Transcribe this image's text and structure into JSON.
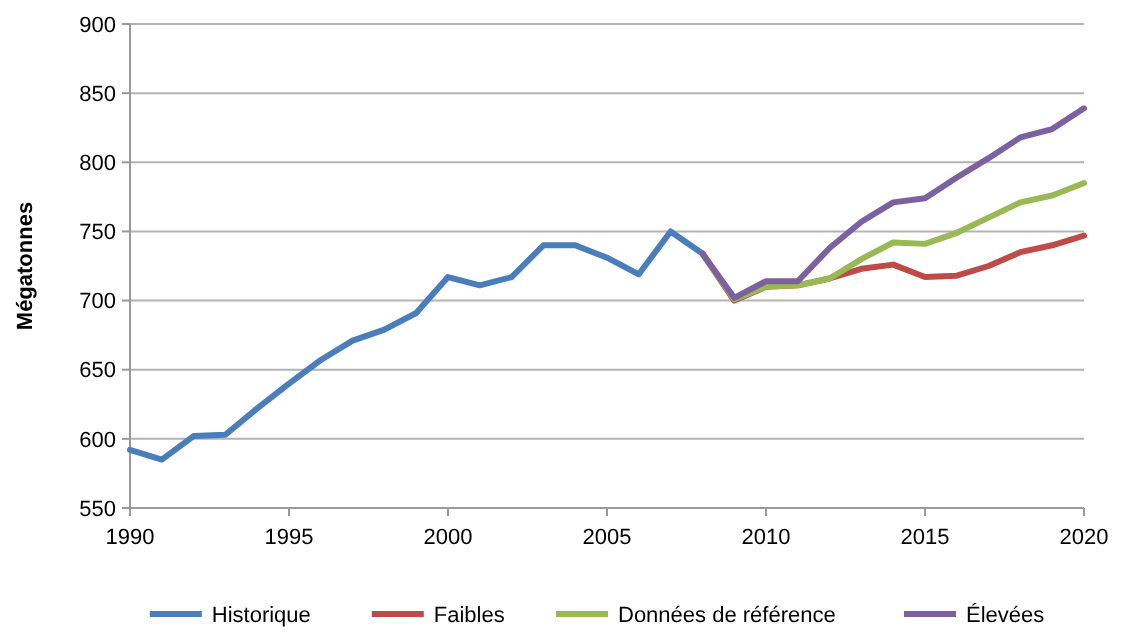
{
  "chart_data": {
    "type": "line",
    "ylabel": "Mégatonnes",
    "xlim": [
      1990,
      2020
    ],
    "xticks": [
      1990,
      1995,
      2000,
      2005,
      2010,
      2015,
      2020
    ],
    "ylim": [
      550,
      900
    ],
    "yticks": [
      550,
      600,
      650,
      700,
      750,
      800,
      850,
      900
    ],
    "grid": "y",
    "legend": "bottom",
    "marker": "none",
    "line_style": "solid",
    "series": [
      {
        "name": "Historique",
        "color": "#4a7ebb",
        "x": [
          1990,
          1991,
          1992,
          1993,
          1994,
          1995,
          1996,
          1997,
          1998,
          1999,
          2000,
          2001,
          2002,
          2003,
          2004,
          2005,
          2006,
          2007,
          2008
        ],
        "values": [
          592,
          585,
          602,
          603,
          622,
          640,
          657,
          671,
          679,
          691,
          717,
          711,
          717,
          740,
          740,
          731,
          719,
          750,
          734
        ]
      },
      {
        "name": "Faibles",
        "color": "#be4b48",
        "x": [
          2008,
          2009,
          2010,
          2011,
          2012,
          2013,
          2014,
          2015,
          2016,
          2017,
          2018,
          2019,
          2020
        ],
        "values": [
          734,
          700,
          710,
          711,
          716,
          723,
          726,
          717,
          718,
          725,
          735,
          740,
          747
        ]
      },
      {
        "name": "Données de référence",
        "color": "#98b954",
        "x": [
          2008,
          2009,
          2010,
          2011,
          2012,
          2013,
          2014,
          2015,
          2016,
          2017,
          2018,
          2019,
          2020
        ],
        "values": [
          734,
          701,
          710,
          711,
          716,
          730,
          742,
          741,
          749,
          760,
          771,
          776,
          785
        ]
      },
      {
        "name": "Élevées",
        "color": "#7d60a0",
        "x": [
          2008,
          2009,
          2010,
          2011,
          2012,
          2013,
          2014,
          2015,
          2016,
          2017,
          2018,
          2019,
          2020
        ],
        "values": [
          734,
          702,
          714,
          714,
          738,
          757,
          771,
          774,
          789,
          803,
          818,
          824,
          839
        ]
      }
    ]
  }
}
